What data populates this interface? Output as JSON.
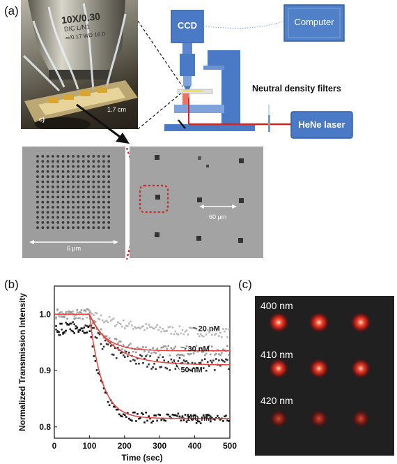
{
  "panel_labels": {
    "a": "(a)",
    "b": "(b)",
    "c": "(c)"
  },
  "setup": {
    "ccd": "CCD",
    "computer": "Computer",
    "filters": "Neutral density filters",
    "laser": "HeNe laser"
  },
  "photo": {
    "objective_line1": "10X/0.30",
    "objective_line2": "DIC L/N1",
    "objective_line3": "∞/0.17  WD 16.0",
    "sub_label": "c)",
    "dimension": "1.7 cm"
  },
  "sem": {
    "left_scale": "6 μm",
    "right_scale": "60 μm"
  },
  "colors": {
    "fit_line": "#e8413c",
    "laser_beam": "#d9231d",
    "device_blue": "#4a79c6",
    "box_blue": "#5080c8",
    "zoom_red": "#e02020"
  },
  "chart_data": {
    "type": "scatter",
    "title": "",
    "xlabel": "Time (sec)",
    "ylabel": "Normalized Transmission Intensity",
    "xlim": [
      0,
      500
    ],
    "ylim": [
      0.78,
      1.05
    ],
    "xticks": [
      0,
      100,
      200,
      300,
      400,
      500
    ],
    "yticks": [
      0.8,
      0.9,
      1.0
    ],
    "grid": false,
    "series": [
      {
        "name": "20 nM",
        "color": "#b8b8b8",
        "baseline": 1.0,
        "plateau": 0.965,
        "tau": 140,
        "noise": 0.008
      },
      {
        "name": "30 nM",
        "color": "#9a9a9a",
        "baseline": 1.0,
        "plateau": 0.935,
        "tau": 45,
        "noise": 0.009
      },
      {
        "name": "50 nM",
        "color": "#333333",
        "baseline": 0.975,
        "plateau": 0.91,
        "tau": 70,
        "noise": 0.012
      },
      {
        "name": "100 nM",
        "color": "#111111",
        "baseline": 0.975,
        "plateau": 0.815,
        "tau": 35,
        "noise": 0.009
      }
    ],
    "fits": [
      {
        "series": "30 nM",
        "baseline": 1.0,
        "plateau": 0.935,
        "tau": 45
      },
      {
        "series": "50 nM",
        "baseline": 1.0,
        "plateau": 0.91,
        "tau": 70
      },
      {
        "series": "100 nM",
        "baseline": 1.0,
        "plateau": 0.815,
        "tau": 35
      }
    ],
    "onset_sec": 100
  },
  "spots": {
    "rows": [
      "400 nm",
      "410 nm",
      "420 nm"
    ],
    "intensity": [
      1.0,
      0.85,
      0.5
    ]
  }
}
